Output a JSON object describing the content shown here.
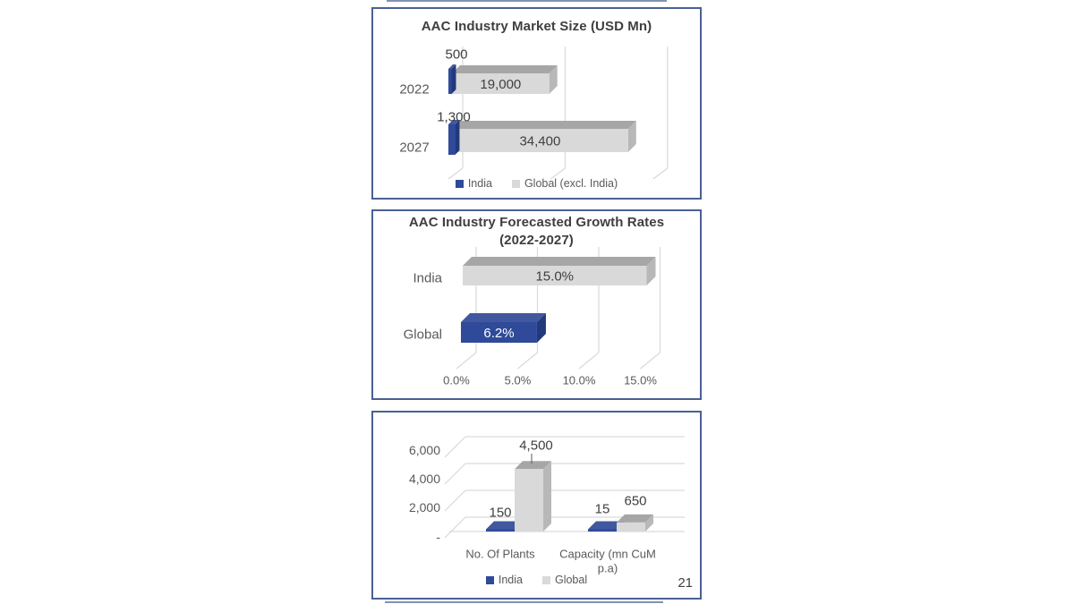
{
  "page": {
    "background": "#ffffff",
    "number_label": "21"
  },
  "colors": {
    "panel_border": "#4a6095",
    "crop_line": "#8292b4",
    "india_front": "#2e4a99",
    "india_top": "#41589f",
    "india_side": "#22397b",
    "global_front": "#d9d9d9",
    "global_top": "#a6a6a6",
    "global_side": "#b8b8b8",
    "grid": "#d9d9d9",
    "tick_text": "#595959",
    "label_text": "#3f3f3f",
    "white_label": "#ffffff"
  },
  "chart_data": [
    {
      "type": "bar",
      "orientation": "horizontal",
      "variant": "3d",
      "title": "AAC Industry Market Size (USD Mn)",
      "categories": [
        "2022",
        "2027"
      ],
      "series": [
        {
          "name": "India",
          "color_key": "india",
          "values": [
            500,
            1300
          ],
          "value_labels": [
            "500",
            "1,300"
          ]
        },
        {
          "name": "Global (excl. India)",
          "color_key": "global",
          "values": [
            19000,
            34400
          ],
          "value_labels": [
            "19,000",
            "34,400"
          ]
        }
      ],
      "xlim": [
        0,
        40000
      ],
      "gridline_values": [
        0,
        20000,
        40000
      ],
      "grid": true,
      "legend": {
        "position": "bottom",
        "entries": [
          {
            "label": "India",
            "color_key": "india"
          },
          {
            "label": "Global (excl. India)",
            "color_key": "global"
          }
        ]
      }
    },
    {
      "type": "bar",
      "orientation": "horizontal",
      "variant": "3d",
      "title": "AAC Industry Forecasted Growth Rates (2022-2027)",
      "title_lines": [
        "AAC Industry Forecasted Growth Rates",
        "(2022-2027)"
      ],
      "categories": [
        "India",
        "Global"
      ],
      "bars": [
        {
          "category": "India",
          "value": 15.0,
          "label": "15.0%",
          "color_key": "global",
          "label_color": "dark"
        },
        {
          "category": "Global",
          "value": 6.2,
          "label": "6.2%",
          "color_key": "india",
          "label_color": "white"
        }
      ],
      "xlim": [
        0,
        15
      ],
      "x_ticks": [
        {
          "value": 0,
          "label": "0.0%"
        },
        {
          "value": 5,
          "label": "5.0%"
        },
        {
          "value": 10,
          "label": "10.0%"
        },
        {
          "value": 15,
          "label": "15.0%"
        }
      ],
      "grid": true
    },
    {
      "type": "bar",
      "orientation": "vertical",
      "variant": "3d",
      "title": "",
      "categories": [
        "No. Of Plants",
        "Capacity (mn CuM p.a)"
      ],
      "category_label_lines": [
        [
          "No. Of Plants"
        ],
        [
          "Capacity (mn CuM",
          "p.a)"
        ]
      ],
      "series": [
        {
          "name": "India",
          "color_key": "india",
          "values": [
            150,
            15
          ],
          "value_labels": [
            "150",
            "15"
          ]
        },
        {
          "name": "Global",
          "color_key": "global",
          "values": [
            4500,
            650
          ],
          "value_labels": [
            "4,500",
            "650"
          ]
        }
      ],
      "ylim": [
        0,
        6000
      ],
      "y_ticks": [
        {
          "value": 0,
          "label": "-"
        },
        {
          "value": 2000,
          "label": "2,000"
        },
        {
          "value": 4000,
          "label": "4,000"
        },
        {
          "value": 6000,
          "label": "6,000"
        }
      ],
      "grid": true,
      "legend": {
        "position": "bottom",
        "entries": [
          {
            "label": "India",
            "color_key": "india"
          },
          {
            "label": "Global",
            "color_key": "global"
          }
        ]
      }
    }
  ]
}
